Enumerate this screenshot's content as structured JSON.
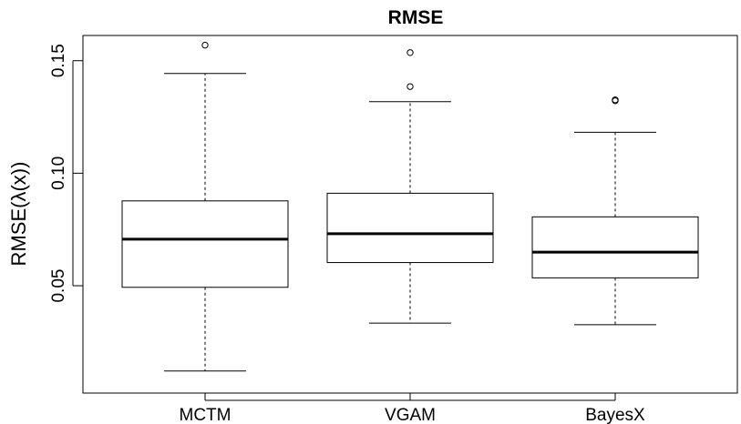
{
  "chart_data": {
    "type": "boxplot",
    "title": "RMSE",
    "xlabel": "",
    "ylabel": "RMSE(λ(x))",
    "ylim": [
      0.0023,
      0.1612
    ],
    "yticks": [
      0.05,
      0.1,
      0.15
    ],
    "ytick_labels": [
      "0.05",
      "0.10",
      "0.15"
    ],
    "grid": false,
    "categories": [
      "MCTM",
      "VGAM",
      "BayesX"
    ],
    "boxes": [
      {
        "category": "MCTM",
        "whisker_low": 0.0121,
        "q1": 0.0493,
        "median": 0.0707,
        "q3": 0.0877,
        "whisker_high": 0.1443,
        "outliers": [
          0.1569
        ]
      },
      {
        "category": "VGAM",
        "whisker_low": 0.0334,
        "q1": 0.0603,
        "median": 0.0731,
        "q3": 0.0911,
        "whisker_high": 0.1318,
        "outliers": [
          0.1385,
          0.1536
        ]
      },
      {
        "category": "BayesX",
        "whisker_low": 0.0327,
        "q1": 0.0535,
        "median": 0.0649,
        "q3": 0.0806,
        "whisker_high": 0.1182,
        "outliers": [
          0.1322,
          0.1326
        ]
      }
    ]
  }
}
